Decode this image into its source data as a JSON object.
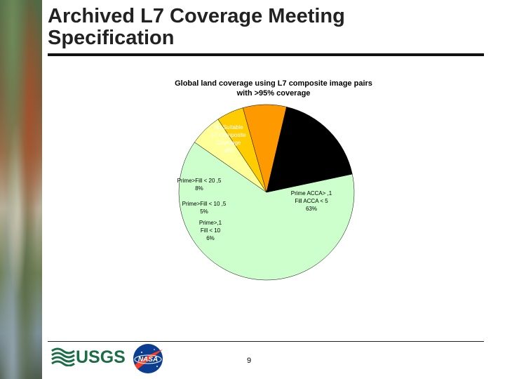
{
  "slide": {
    "title_line1": "Archived L7 Coverage Meeting",
    "title_line2": "Specification",
    "page_number": "9"
  },
  "logos": {
    "usgs_text": "USGS",
    "nasa_text": "NASA"
  },
  "chart_data": {
    "type": "pie",
    "title_line1": "Global land coverage using L7 composite image pairs",
    "title_line2": "with >95% coverage",
    "slices": [
      {
        "lines": [
          "Prime ACCA> ,1",
          "Fill ACCA < 5"
        ],
        "pct_label": "63%",
        "value": 63,
        "color": "#ccffcc"
      },
      {
        "lines": [
          "Prime>,1",
          "Fill < 10"
        ],
        "pct_label": "6%",
        "value": 6,
        "color": "#ffff99"
      },
      {
        "lines": [
          "Prime>Fill < 10 ,5"
        ],
        "pct_label": "5%",
        "value": 5,
        "color": "#ffcc00"
      },
      {
        "lines": [
          "Prime>Fill < 20 ,5"
        ],
        "pct_label": "8%",
        "value": 8,
        "color": "#ff9900"
      },
      {
        "lines": [
          "No Suitable",
          "L7 Composite",
          "Coverage"
        ],
        "pct_label": "18%",
        "value": 18,
        "color": "#000000"
      }
    ]
  }
}
